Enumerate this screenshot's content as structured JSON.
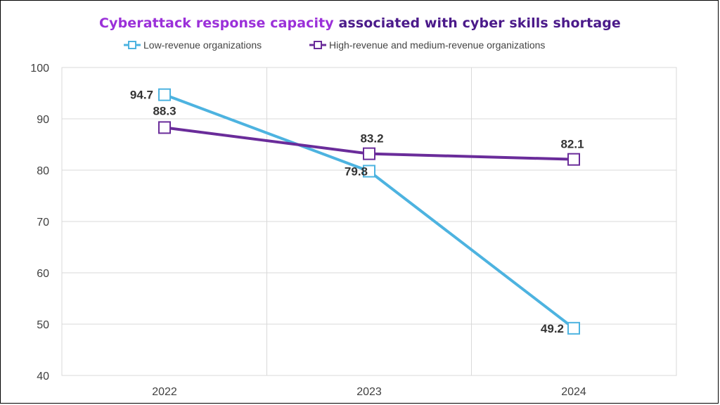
{
  "chart_data": {
    "type": "line",
    "title_part1": "Cyberattack response capacity",
    "title_part2": "associated with cyber skills shortage",
    "categories": [
      "2022",
      "2023",
      "2024"
    ],
    "ylim": [
      40,
      100
    ],
    "yticks": [
      40,
      50,
      60,
      70,
      80,
      90,
      100
    ],
    "grid": true,
    "legend_position": "top",
    "series": [
      {
        "name": "Low-revenue organizations",
        "values": [
          94.7,
          79.8,
          49.2
        ],
        "labels": [
          "94.7",
          "79.8",
          "49.2"
        ],
        "color": "#4db3e0"
      },
      {
        "name": "High-revenue and medium-revenue organizations",
        "values": [
          88.3,
          83.2,
          82.1
        ],
        "labels": [
          "88.3",
          "83.2",
          "82.1"
        ],
        "color": "#6a2c9a"
      }
    ]
  }
}
